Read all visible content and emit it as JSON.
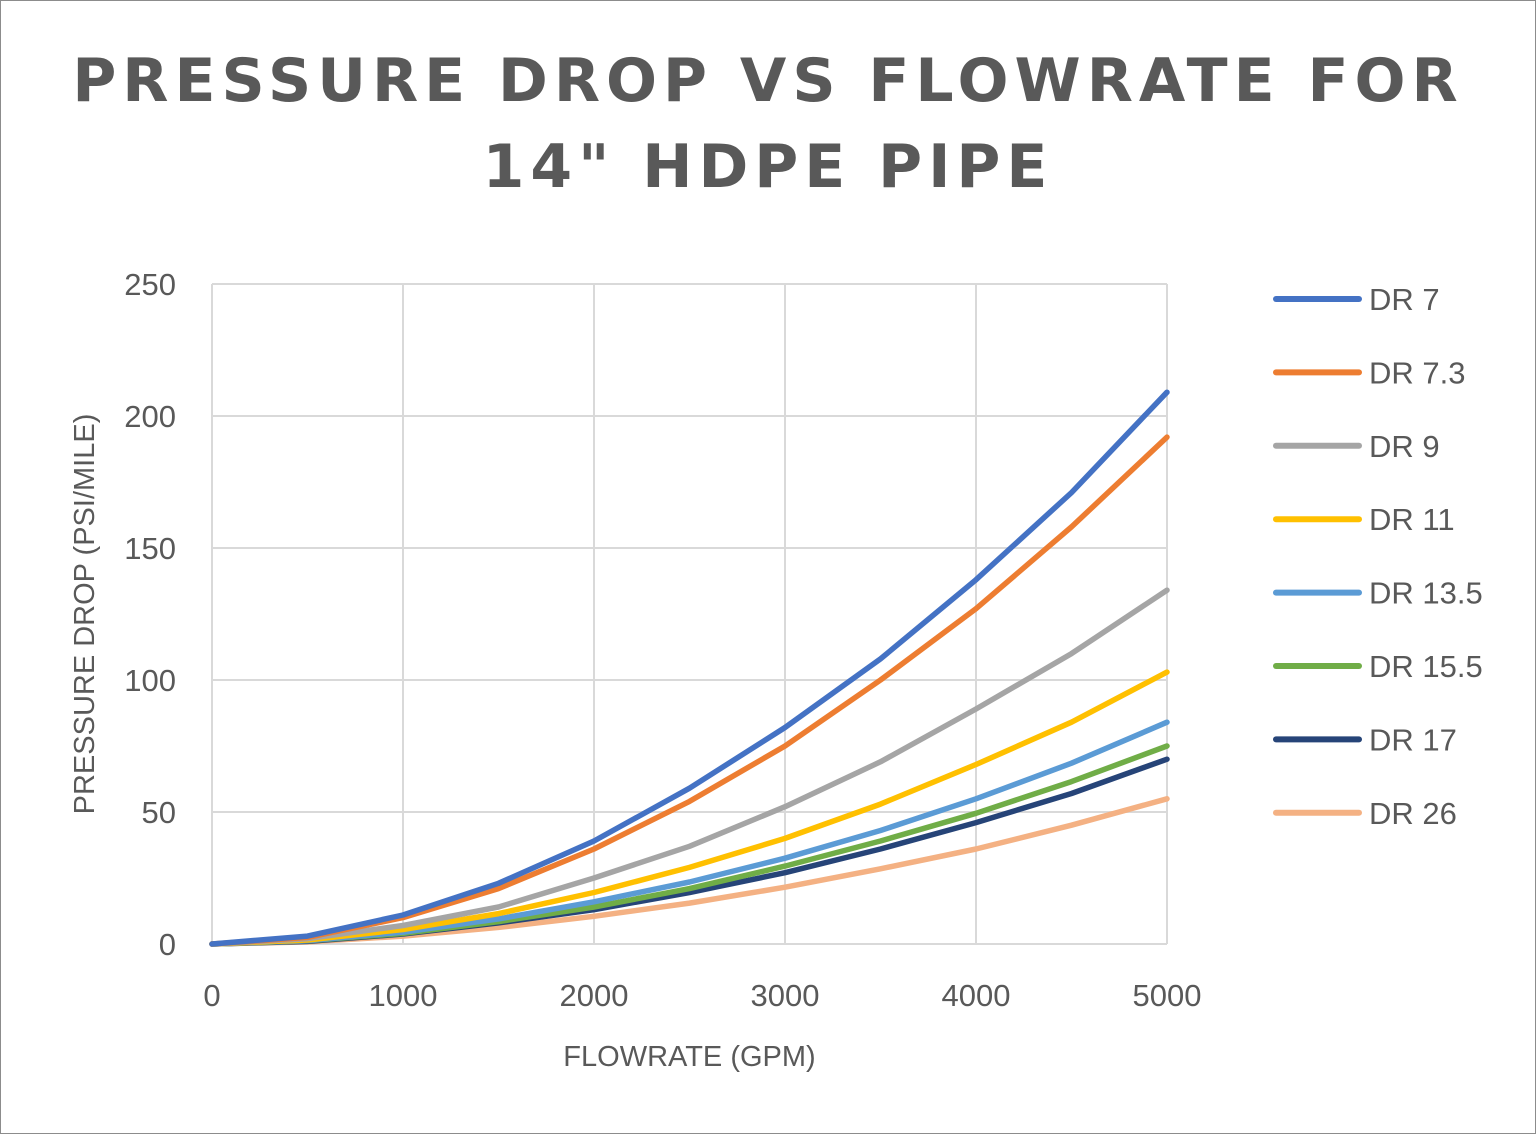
{
  "chart_data": {
    "type": "line",
    "title_lines": [
      "PRESSURE DROP VS FLOWRATE FOR",
      "14\" HDPE PIPE"
    ],
    "xlabel": "FLOWRATE (GPM)",
    "ylabel": "PRESSURE DROP (PSI/MILE)",
    "xlim": [
      0,
      5000
    ],
    "ylim": [
      0,
      250
    ],
    "x_ticks": [
      0,
      1000,
      2000,
      3000,
      4000,
      5000
    ],
    "y_ticks": [
      0,
      50,
      100,
      150,
      200,
      250
    ],
    "grid": true,
    "legend_position": "right",
    "x": [
      0,
      500,
      1000,
      1500,
      2000,
      2500,
      3000,
      3500,
      4000,
      4500,
      5000
    ],
    "series": [
      {
        "name": "DR 7",
        "color": "#4472C4",
        "values": [
          0,
          3,
          11,
          23,
          39,
          59,
          82,
          108,
          138,
          171,
          209
        ]
      },
      {
        "name": "DR 7.3",
        "color": "#ED7D31",
        "values": [
          0,
          2.5,
          10,
          21,
          36,
          54,
          75,
          100,
          127,
          158,
          192
        ]
      },
      {
        "name": "DR 9",
        "color": "#A5A5A5",
        "values": [
          0,
          2,
          7,
          14,
          25,
          37,
          52,
          69,
          89,
          110,
          134
        ]
      },
      {
        "name": "DR 11",
        "color": "#FFC000",
        "values": [
          0,
          1.5,
          5.5,
          11.5,
          19.5,
          29,
          40,
          53,
          68,
          84,
          103
        ]
      },
      {
        "name": "DR 13.5",
        "color": "#5B9BD5",
        "values": [
          0,
          1.3,
          4.5,
          9.5,
          16,
          23.5,
          32.5,
          43,
          55,
          68.5,
          84
        ]
      },
      {
        "name": "DR 15.5",
        "color": "#70AD47",
        "values": [
          0,
          1.2,
          4,
          8.5,
          14,
          21,
          29.5,
          39,
          49.5,
          61.5,
          75
        ]
      },
      {
        "name": "DR 17",
        "color": "#264478",
        "values": [
          0,
          1,
          3.8,
          8,
          13,
          19.5,
          27,
          36,
          46,
          57,
          70
        ]
      },
      {
        "name": "DR 26",
        "color": "#F4B183",
        "values": [
          0,
          0.8,
          3,
          6.3,
          10.5,
          15.5,
          21.5,
          28.5,
          36,
          45,
          55
        ]
      }
    ]
  }
}
